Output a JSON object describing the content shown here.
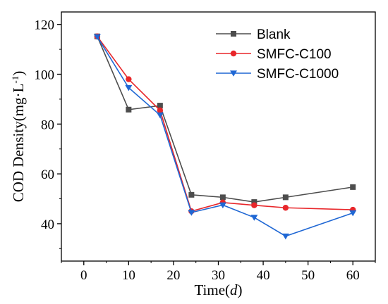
{
  "chart_data": {
    "type": "line",
    "xlabel_prefix": "Time(",
    "xlabel_var": "d",
    "xlabel_suffix": ")",
    "ylabel_main": "COD Density(mg·L",
    "ylabel_sup": "-1",
    "ylabel_close": ")",
    "xlim": [
      -5,
      65
    ],
    "ylim": [
      25,
      125
    ],
    "xticks": [
      0,
      10,
      20,
      30,
      40,
      50,
      60
    ],
    "yticks": [
      40,
      60,
      80,
      100,
      120
    ],
    "grid": false,
    "legend_position": "top-right",
    "x": [
      3,
      10,
      17,
      24,
      31,
      38,
      45,
      60
    ],
    "series": [
      {
        "name": "Blank",
        "color": "#4d4d4d",
        "marker": "square",
        "values": [
          115.2,
          85.8,
          87.4,
          51.6,
          50.6,
          48.7,
          50.6,
          54.7
        ]
      },
      {
        "name": "SMFC-C100",
        "color": "#e8262a",
        "marker": "circle",
        "values": [
          115.2,
          98.0,
          85.5,
          45.0,
          48.5,
          47.4,
          46.4,
          45.6
        ]
      },
      {
        "name": "SMFC-C1000",
        "color": "#1f67d4",
        "marker": "triangle-down",
        "values": [
          115.0,
          94.6,
          83.6,
          44.5,
          47.5,
          42.5,
          35.0,
          44.3
        ]
      }
    ]
  }
}
